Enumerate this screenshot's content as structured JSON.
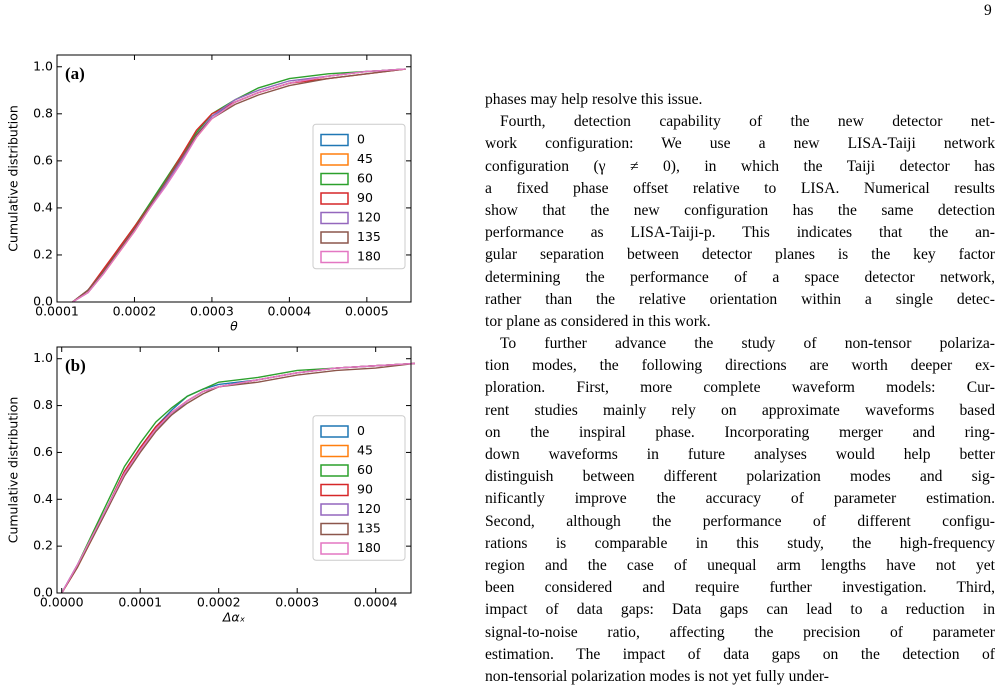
{
  "page_number": "9",
  "chart_data": [
    {
      "type": "line",
      "panel_label": "(a)",
      "xlabel": "θ",
      "ylabel": "Cumulative distribution",
      "x": [
        0.00012,
        0.00014,
        0.00016,
        0.00018,
        0.0002,
        0.00022,
        0.00024,
        0.00026,
        0.00028,
        0.0003,
        0.00033,
        0.00036,
        0.0004,
        0.00045,
        0.0005,
        0.00055
      ],
      "series": [
        {
          "name": "0",
          "color": "#1f77b4",
          "values": [
            0,
            0.05,
            0.13,
            0.22,
            0.31,
            0.41,
            0.51,
            0.61,
            0.71,
            0.79,
            0.85,
            0.89,
            0.93,
            0.96,
            0.98,
            0.99
          ]
        },
        {
          "name": "45",
          "color": "#ff7f0e",
          "values": [
            0,
            0.04,
            0.12,
            0.21,
            0.3,
            0.4,
            0.5,
            0.6,
            0.7,
            0.78,
            0.85,
            0.89,
            0.93,
            0.96,
            0.98,
            0.99
          ]
        },
        {
          "name": "60",
          "color": "#2ca02c",
          "values": [
            0,
            0.05,
            0.13,
            0.23,
            0.32,
            0.42,
            0.52,
            0.62,
            0.72,
            0.8,
            0.86,
            0.91,
            0.95,
            0.97,
            0.98,
            0.99
          ]
        },
        {
          "name": "90",
          "color": "#d62728",
          "values": [
            0,
            0.05,
            0.14,
            0.23,
            0.32,
            0.41,
            0.51,
            0.62,
            0.73,
            0.8,
            0.85,
            0.89,
            0.93,
            0.95,
            0.97,
            0.99
          ]
        },
        {
          "name": "120",
          "color": "#9467bd",
          "values": [
            0,
            0.04,
            0.12,
            0.22,
            0.31,
            0.4,
            0.5,
            0.6,
            0.71,
            0.79,
            0.86,
            0.9,
            0.94,
            0.96,
            0.98,
            0.99
          ]
        },
        {
          "name": "135",
          "color": "#8c564b",
          "values": [
            0,
            0.05,
            0.13,
            0.22,
            0.31,
            0.41,
            0.51,
            0.61,
            0.71,
            0.78,
            0.84,
            0.88,
            0.92,
            0.95,
            0.97,
            0.99
          ]
        },
        {
          "name": "180",
          "color": "#e377c2",
          "values": [
            0,
            0.04,
            0.12,
            0.21,
            0.3,
            0.4,
            0.49,
            0.59,
            0.7,
            0.78,
            0.85,
            0.89,
            0.93,
            0.96,
            0.98,
            0.99
          ]
        }
      ],
      "xlim": [
        0.0001,
        0.000557
      ],
      "ylim": [
        0,
        1.05
      ],
      "xticks": [
        0.0001,
        0.0002,
        0.0003,
        0.0004,
        0.0005
      ],
      "yticks": [
        {
          "value": 0,
          "label": "0.0"
        },
        0.2,
        0.4,
        0.6,
        0.8,
        {
          "value": 1,
          "label": "1.0"
        }
      ],
      "legend": "center right"
    },
    {
      "type": "line",
      "panel_label": "(b)",
      "xlabel": "Δαₓ",
      "ylabel": "Cumulative distribution",
      "x": [
        0,
        2e-05,
        4e-05,
        6e-05,
        8e-05,
        0.0001,
        0.00012,
        0.00014,
        0.00016,
        0.00018,
        0.0002,
        0.00025,
        0.0003,
        0.00035,
        0.0004,
        0.00045
      ],
      "series": [
        {
          "name": "0",
          "color": "#1f77b4",
          "values": [
            0,
            0.12,
            0.25,
            0.38,
            0.52,
            0.62,
            0.71,
            0.78,
            0.84,
            0.87,
            0.89,
            0.91,
            0.94,
            0.96,
            0.97,
            0.98
          ]
        },
        {
          "name": "45",
          "color": "#ff7f0e",
          "values": [
            0,
            0.11,
            0.24,
            0.37,
            0.51,
            0.61,
            0.7,
            0.77,
            0.82,
            0.86,
            0.88,
            0.91,
            0.94,
            0.96,
            0.97,
            0.98
          ]
        },
        {
          "name": "60",
          "color": "#2ca02c",
          "values": [
            0,
            0.12,
            0.26,
            0.4,
            0.54,
            0.64,
            0.73,
            0.79,
            0.84,
            0.87,
            0.9,
            0.92,
            0.95,
            0.96,
            0.97,
            0.98
          ]
        },
        {
          "name": "90",
          "color": "#d62728",
          "values": [
            0,
            0.11,
            0.25,
            0.38,
            0.52,
            0.62,
            0.71,
            0.77,
            0.82,
            0.86,
            0.88,
            0.91,
            0.94,
            0.96,
            0.97,
            0.98
          ]
        },
        {
          "name": "120",
          "color": "#9467bd",
          "values": [
            0,
            0.12,
            0.24,
            0.37,
            0.51,
            0.61,
            0.7,
            0.76,
            0.82,
            0.86,
            0.88,
            0.91,
            0.94,
            0.96,
            0.97,
            0.98
          ]
        },
        {
          "name": "135",
          "color": "#8c564b",
          "values": [
            0,
            0.11,
            0.24,
            0.37,
            0.5,
            0.6,
            0.69,
            0.76,
            0.81,
            0.85,
            0.88,
            0.9,
            0.93,
            0.95,
            0.96,
            0.98
          ]
        },
        {
          "name": "180",
          "color": "#e377c2",
          "values": [
            0,
            0.12,
            0.25,
            0.38,
            0.51,
            0.61,
            0.7,
            0.77,
            0.82,
            0.86,
            0.88,
            0.91,
            0.94,
            0.96,
            0.97,
            0.98
          ]
        }
      ],
      "xlim": [
        -6e-06,
        0.000445
      ],
      "ylim": [
        0,
        1.05
      ],
      "xticks": [
        {
          "value": 0,
          "label": "0.0000"
        },
        0.0001,
        0.0002,
        0.0003,
        0.0004
      ],
      "yticks": [
        {
          "value": 0,
          "label": "0.0"
        },
        0.2,
        0.4,
        0.6,
        0.8,
        {
          "value": 1,
          "label": "1.0"
        }
      ],
      "legend": "center right"
    }
  ],
  "body": {
    "paragraphs": [
      [
        "phases may help resolve this issue."
      ],
      [
        "Fourth, detection capability of the new detector net-",
        "work configuration: We use a new LISA-Taiji network",
        "configuration (γ ≠ 0), in which the Taiji detector has",
        "a fixed phase offset relative to LISA. Numerical results",
        "show that the new configuration has the same detection",
        "performance as LISA-Taiji-p. This indicates that the an-",
        "gular separation between detector planes is the key factor",
        "determining the performance of a space detector network,",
        "rather than the relative orientation within a single detec-",
        "tor plane as considered in this work."
      ],
      [
        "To further advance the study of non-tensor polariza-",
        "tion modes, the following directions are worth deeper ex-",
        "ploration. First, more complete waveform models: Cur-",
        "rent studies mainly rely on approximate waveforms based",
        "on the inspiral phase. Incorporating merger and ring-",
        "down waveforms in future analyses would help better",
        "distinguish between different polarization modes and sig-",
        "nificantly improve the accuracy of parameter estimation.",
        "Second, although the performance of different configu-",
        "rations is comparable in this study, the high-frequency",
        "region and the case of unequal arm lengths have not yet",
        "been considered and require further investigation. Third,",
        "impact of data gaps: Data gaps can lead to a reduction in",
        "signal-to-noise ratio, affecting the precision of parameter",
        "estimation. The impact of data gaps on the detection of",
        "non-tensorial polarization modes is not yet fully under-"
      ]
    ]
  }
}
